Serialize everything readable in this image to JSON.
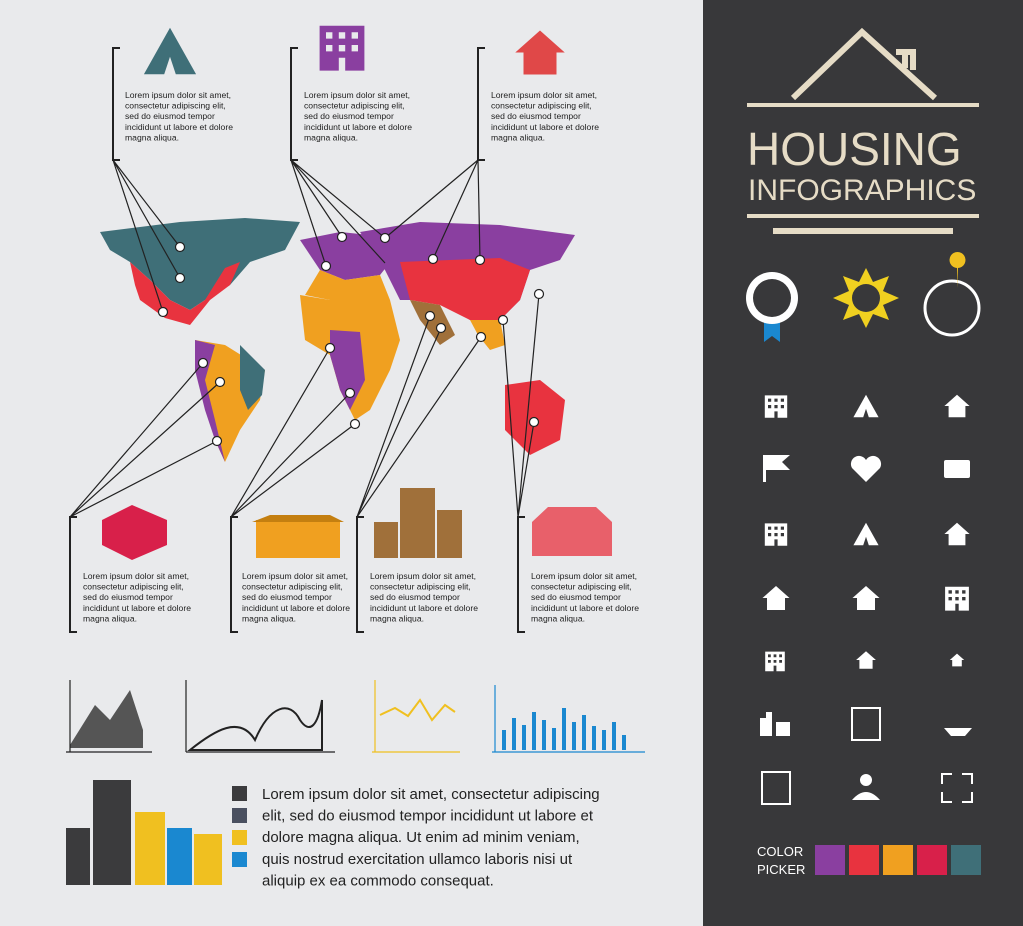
{
  "title": {
    "line1": "HOUSING",
    "line2": "INFOGRAPHICS"
  },
  "callouts": [
    {
      "lines": [
        "Lorem ipsum dolor sit amet,",
        "consectetur adipiscing elit,",
        "sed do eiusmod tempor",
        "incididunt ut labore et dolore",
        "magna aliqua."
      ]
    },
    {
      "lines": [
        "Lorem ipsum dolor sit amet,",
        "consectetur adipiscing elit,",
        "sed do eiusmod tempor",
        "incididunt ut labore et dolore",
        "magna aliqua."
      ]
    },
    {
      "lines": [
        "Lorem ipsum dolor sit amet,",
        "consectetur adipiscing elit,",
        "sed do eiusmod tempor",
        "incididunt ut labore et dolore",
        "magna aliqua."
      ]
    },
    {
      "lines": [
        "Lorem ipsum dolor sit amet,",
        "consectetur adipiscing elit,",
        "sed do eiusmod tempor",
        "incididunt ut labore et dolore",
        "magna aliqua."
      ]
    },
    {
      "lines": [
        "Lorem ipsum dolor sit amet,",
        "consectetur adipiscing elit,",
        "sed do eiusmod tempor",
        "incididunt ut labore et dolore",
        "magna aliqua."
      ]
    },
    {
      "lines": [
        "Lorem ipsum dolor sit amet,",
        "consectetur adipiscing elit,",
        "sed do eiusmod tempor",
        "incididunt ut labore et dolore",
        "magna aliqua."
      ]
    },
    {
      "lines": [
        "Lorem ipsum dolor sit amet,",
        "consectetur adipiscing elit,",
        "sed do eiusmod tempor",
        "incididunt ut labore et dolore",
        "magna aliqua."
      ]
    }
  ],
  "paragraph": {
    "lines": [
      "Lorem ipsum dolor sit amet, consectetur adipiscing",
      "elit, sed do eiusmod tempor incididunt ut labore et",
      "dolore magna aliqua. Ut enim ad minim veniam,",
      "quis nostrud exercitation ullamco laboris nisi ut",
      "aliquip ex ea commodo consequat."
    ]
  },
  "color_picker": {
    "label_lines": [
      "COLOR",
      "PICKER"
    ]
  }
}
